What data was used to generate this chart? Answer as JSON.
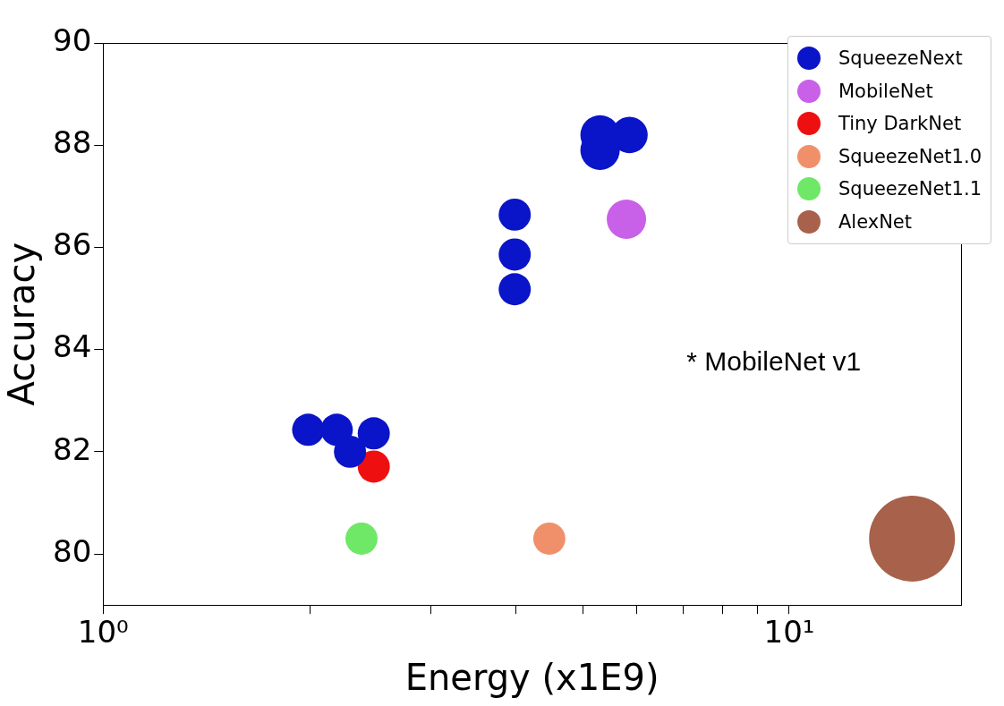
{
  "chart_data": {
    "type": "bubble",
    "xlabel": "Energy (x1E9)",
    "ylabel": "Accuracy",
    "log": "x",
    "xlim": [
      1,
      17.8
    ],
    "ylim": [
      79,
      90
    ],
    "xticks": [
      {
        "value": 1,
        "label": "10⁰"
      },
      {
        "value": 2,
        "label": null
      },
      {
        "value": 3,
        "label": null
      },
      {
        "value": 4,
        "label": null
      },
      {
        "value": 5,
        "label": null
      },
      {
        "value": 6,
        "label": null
      },
      {
        "value": 7,
        "label": null
      },
      {
        "value": 8,
        "label": null
      },
      {
        "value": 9,
        "label": null
      },
      {
        "value": 10,
        "label": "10¹"
      }
    ],
    "yticks": [
      80,
      82,
      84,
      86,
      88,
      90
    ],
    "grid": false,
    "legend": "top right",
    "marker": "circle",
    "annotations": [
      "* MobileNet v1"
    ],
    "series": [
      {
        "name": "SqueezeNext",
        "color": "#0a14c8",
        "x": [
          1.99,
          2.19,
          2.29,
          2.48,
          3.98,
          3.98,
          3.98,
          5.3,
          5.3,
          5.85
        ],
        "values": [
          82.43,
          82.43,
          82.0,
          82.36,
          86.64,
          85.86,
          85.18,
          88.2,
          87.9,
          88.2
        ],
        "sizes": [
          0.14,
          0.14,
          0.14,
          0.14,
          0.14,
          0.14,
          0.14,
          0.21,
          0.21,
          0.18
        ]
      },
      {
        "name": "MobileNet",
        "color": "#c860e8",
        "x": [
          5.79
        ],
        "values": [
          86.55
        ],
        "sizes": [
          0.21
        ]
      },
      {
        "name": "Tiny DarkNet",
        "color": "#ee1010",
        "x": [
          2.48
        ],
        "values": [
          81.71
        ],
        "sizes": [
          0.14
        ]
      },
      {
        "name": "SqueezeNet1.0",
        "color": "#f0906a",
        "x": [
          4.47
        ],
        "values": [
          80.3
        ],
        "sizes": [
          0.14
        ]
      },
      {
        "name": "SqueezeNet1.1",
        "color": "#6ee866",
        "x": [
          2.38
        ],
        "values": [
          80.3
        ],
        "sizes": [
          0.14
        ]
      },
      {
        "name": "AlexNet",
        "color": "#a8614a",
        "x": [
          15.1
        ],
        "values": [
          80.3
        ],
        "sizes": [
          1
        ]
      }
    ]
  }
}
